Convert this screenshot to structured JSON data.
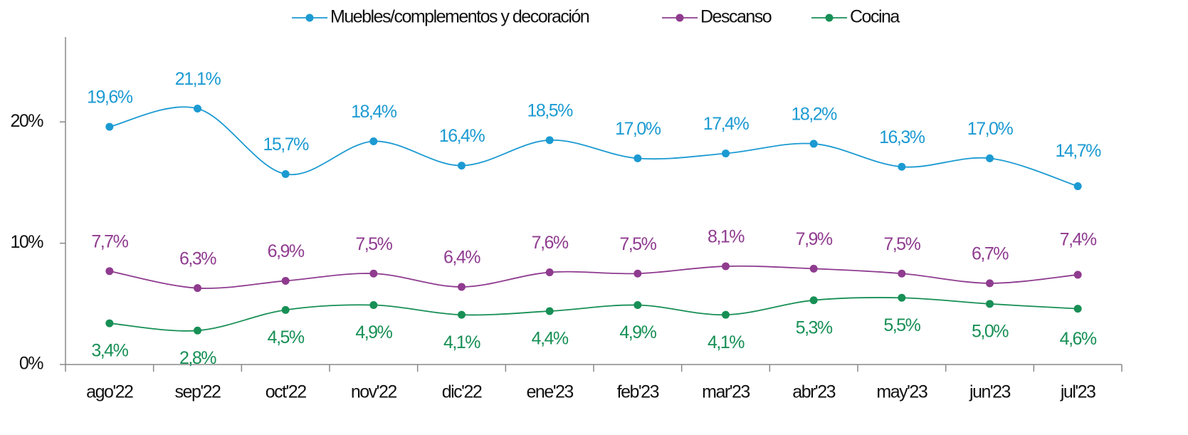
{
  "chart_data": {
    "type": "line",
    "categories": [
      "ago'22",
      "sep'22",
      "oct'22",
      "nov'22",
      "dic'22",
      "ene'23",
      "feb'23",
      "mar'23",
      "abr'23",
      "may'23",
      "jun'23",
      "jul'23"
    ],
    "series": [
      {
        "name": "Muebles/complementos y decoración",
        "color": "#1b9ad2",
        "label_position": "above",
        "values": [
          19.6,
          21.1,
          15.7,
          18.4,
          16.4,
          18.5,
          17.0,
          17.4,
          18.2,
          16.3,
          17.0,
          14.7
        ],
        "value_labels": [
          "19,6%",
          "21,1%",
          "15,7%",
          "18,4%",
          "16,4%",
          "18,5%",
          "17,0%",
          "17,4%",
          "18,2%",
          "16,3%",
          "17,0%",
          "14,7%"
        ]
      },
      {
        "name": "Descanso",
        "color": "#8f3b8f",
        "label_position": "above",
        "values": [
          7.7,
          6.3,
          6.9,
          7.5,
          6.4,
          7.6,
          7.5,
          8.1,
          7.9,
          7.5,
          6.7,
          7.4
        ],
        "value_labels": [
          "7,7%",
          "6,3%",
          "6,9%",
          "7,5%",
          "6,4%",
          "7,6%",
          "7,5%",
          "8,1%",
          "7,9%",
          "7,5%",
          "6,7%",
          "7,4%"
        ]
      },
      {
        "name": "Cocina",
        "color": "#178f55",
        "label_position": "below",
        "values": [
          3.4,
          2.8,
          4.5,
          4.9,
          4.1,
          4.4,
          4.9,
          4.1,
          5.3,
          5.5,
          5.0,
          4.6
        ],
        "value_labels": [
          "3,4%",
          "2,8%",
          "4,5%",
          "4,9%",
          "4,1%",
          "4,4%",
          "4,9%",
          "4,1%",
          "5,3%",
          "5,5%",
          "5,0%",
          "4,6%"
        ]
      }
    ],
    "ylim": [
      0,
      27
    ],
    "yticks": [
      {
        "value": 0,
        "label": "0%"
      },
      {
        "value": 10,
        "label": "10%"
      },
      {
        "value": 20,
        "label": "20%"
      }
    ],
    "grid": false,
    "legend": "top"
  }
}
